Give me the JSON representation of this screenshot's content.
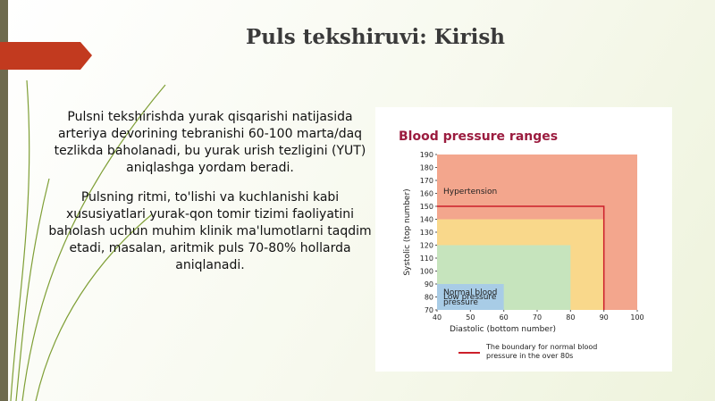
{
  "slide": {
    "title": "Puls tekshiruvi: Kirish",
    "paragraphs": [
      "Pulsni tekshirishda yurak qisqarishi natijasida arteriya devorining tebranishi 60-100 marta/daq tezlikda baholanadi, bu yurak urish tezligini (YUT) aniqlashga yordam beradi.",
      "Pulsning ritmi, to'lishi va kuchlanishi kabi xususiyatlari yurak-qon tomir tizimi faoliyatini baholash uchun muhim klinik ma'lumotlarni taqdim etadi, masalan, aritmik puls 70-80% hollarda aniqlanadi."
    ]
  },
  "chart_data": {
    "type": "region",
    "title": "Blood pressure ranges",
    "x_label": "Diastolic (bottom number)",
    "y_label": "Systolic (top number)",
    "xlim": [
      40,
      100
    ],
    "ylim": [
      70,
      190
    ],
    "xticks": [
      40,
      50,
      60,
      70,
      80,
      90,
      100
    ],
    "yticks": [
      70,
      80,
      90,
      100,
      110,
      120,
      130,
      140,
      150,
      160,
      170,
      180,
      190
    ],
    "regions": [
      {
        "name": "Hypertension",
        "color": "#f3a68d",
        "x": [
          40,
          100
        ],
        "y": [
          70,
          190
        ]
      },
      {
        "color": "#f9d88b",
        "x": [
          40,
          90
        ],
        "y": [
          70,
          140
        ]
      },
      {
        "name": "Normal blood pressure",
        "color": "#c6e4bd",
        "x": [
          40,
          80
        ],
        "y": [
          70,
          120
        ]
      },
      {
        "name": "Low pressure",
        "color": "#a8cce6",
        "x": [
          40,
          60
        ],
        "y": [
          70,
          90
        ]
      }
    ],
    "boundary": {
      "label": "The boundary for normal blood pressure in the over 80s",
      "color": "#cc1f2a",
      "x": 90,
      "y": 150
    }
  }
}
